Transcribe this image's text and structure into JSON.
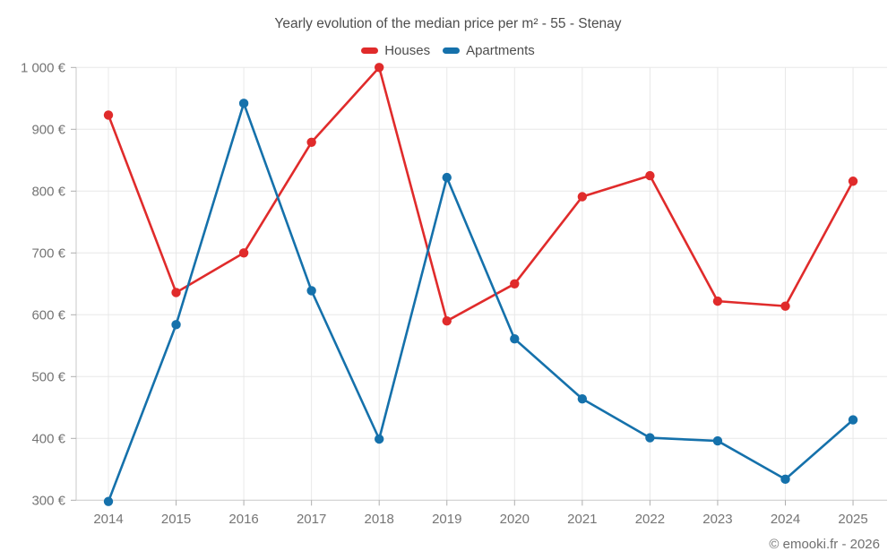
{
  "title": "Yearly evolution of the median price per m² - 55 - Stenay",
  "attribution": "© emooki.fr - 2026",
  "colors": {
    "houses": "#e02b2b",
    "apartments": "#1571ab",
    "grid": "#e8e8e8",
    "axis": "#c8c8c8",
    "tick": "#aeaeae",
    "label": "#757575"
  },
  "chart_data": {
    "type": "line",
    "title": "Yearly evolution of the median price per m² - 55 - Stenay",
    "xlabel": "",
    "ylabel": "",
    "x": [
      2014,
      2015,
      2016,
      2017,
      2018,
      2019,
      2020,
      2021,
      2022,
      2023,
      2024,
      2025
    ],
    "x_tick_labels": [
      "2014",
      "2015",
      "2016",
      "2017",
      "2018",
      "2019",
      "2020",
      "2021",
      "2022",
      "2023",
      "2024",
      "2025"
    ],
    "series": [
      {
        "name": "Houses",
        "color": "#e02b2b",
        "values": [
          923,
          636,
          700,
          879,
          1000,
          590,
          650,
          791,
          825,
          622,
          614,
          816
        ]
      },
      {
        "name": "Apartments",
        "color": "#1571ab",
        "values": [
          298,
          584,
          942,
          639,
          399,
          822,
          561,
          464,
          401,
          396,
          334,
          430
        ]
      }
    ],
    "ylim": [
      300,
      1000
    ],
    "y_ticks": [
      300,
      400,
      500,
      600,
      700,
      800,
      900,
      1000
    ],
    "y_tick_labels": [
      "300 €",
      "400 €",
      "500 €",
      "600 €",
      "700 €",
      "800 €",
      "900 €",
      "1 000 €"
    ],
    "grid": true,
    "legend_position": "top-center"
  }
}
